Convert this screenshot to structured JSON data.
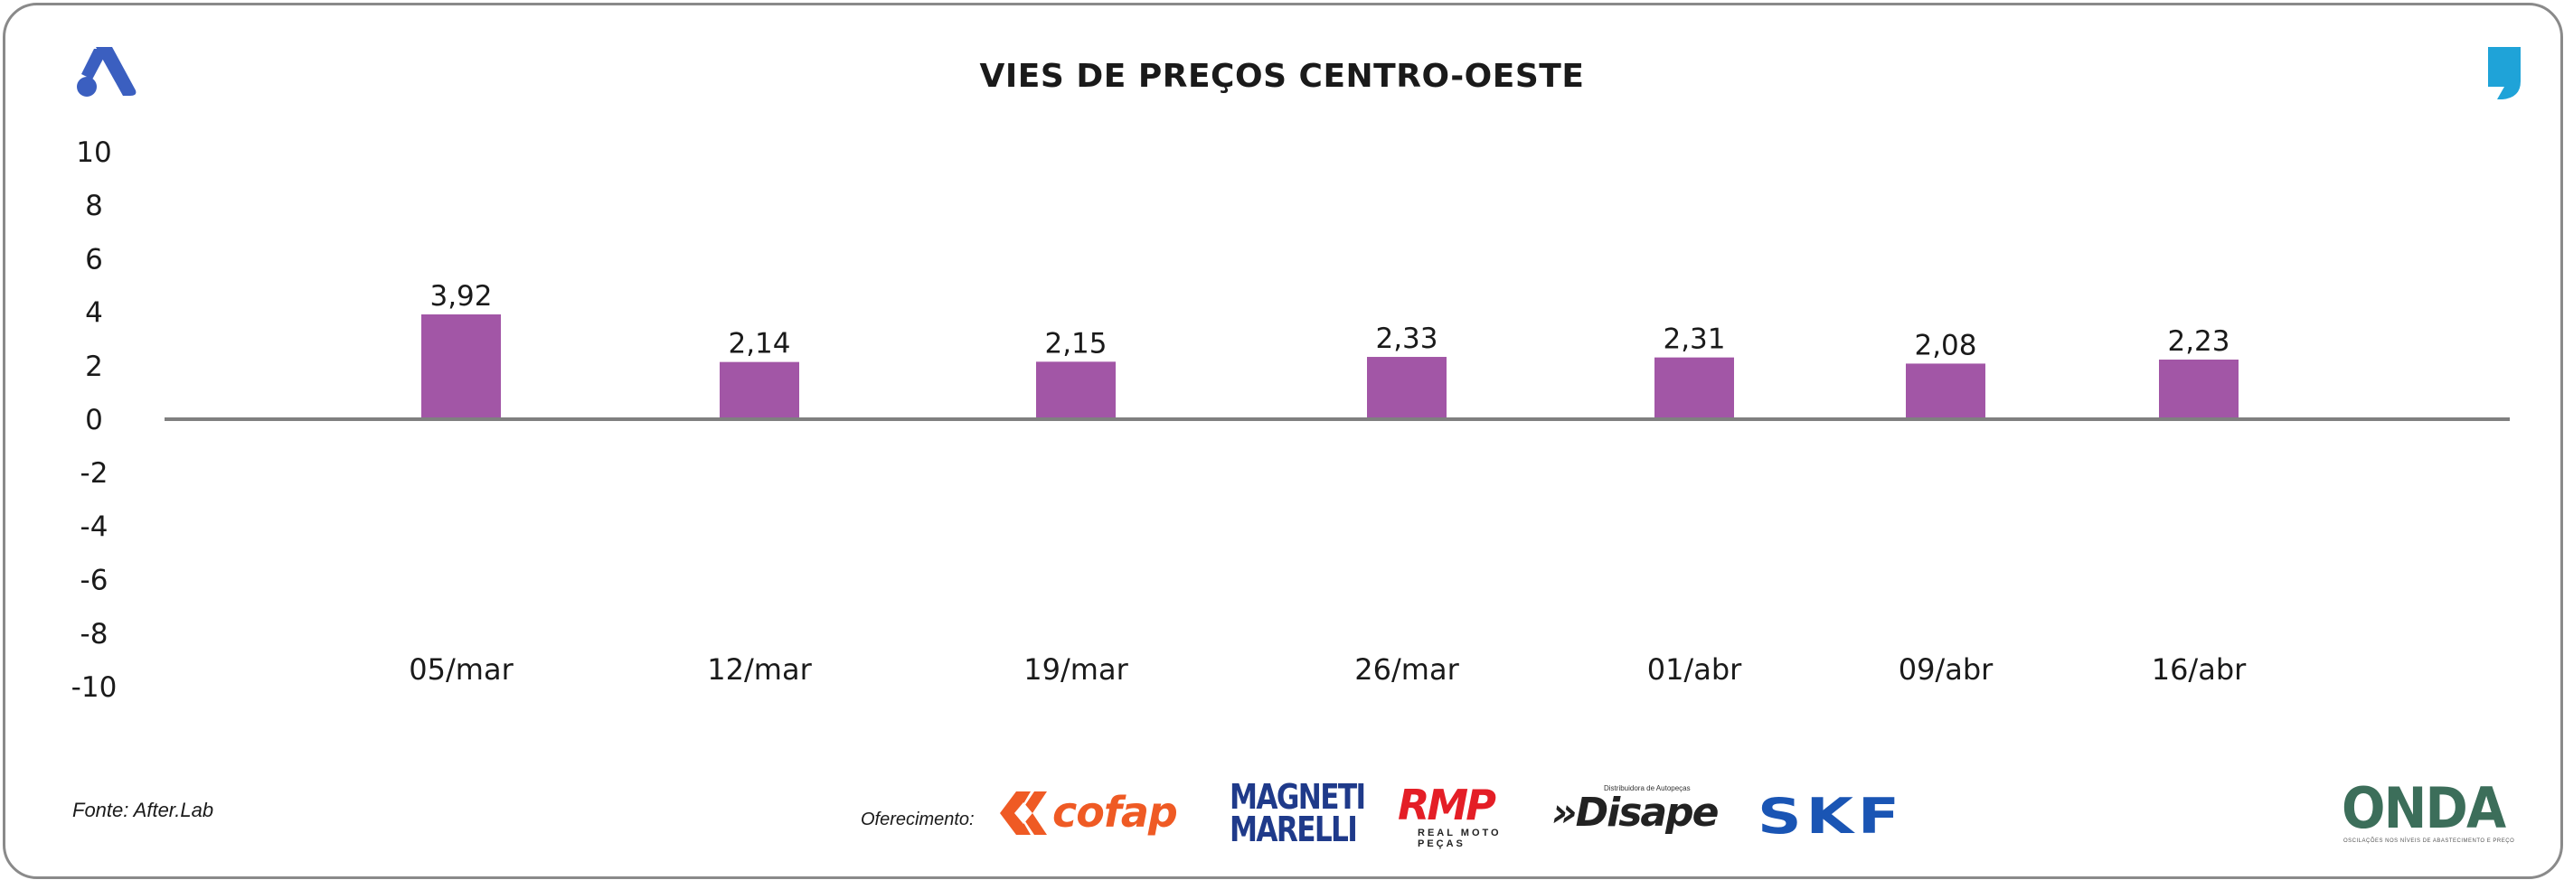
{
  "header": {
    "title": "VIES DE PREÇOS CENTRO-OESTE"
  },
  "footer": {
    "source": "Fonte: After.Lab",
    "offer_label": "Oferecimento:",
    "sponsors": {
      "cofap": "cofap",
      "magneti_line1": "MAGNETI",
      "magneti_line2": "MARELLI",
      "rmp": "RMP",
      "rmp_sub": "REAL MOTO PEÇAS",
      "disape": "»Disape",
      "disape_sub": "Distribuidora de Autopeças",
      "skf": "SKF",
      "onda": "ONDA",
      "onda_sub": "OSCILAÇÕES NOS NÍVEIS DE ABASTECIMENTO E PREÇO"
    }
  },
  "colors": {
    "bar": "#a256a6",
    "axis": "#808080",
    "text": "#1a1a1a",
    "logo_left": "#3b5fc0",
    "logo_right": "#1fa3d8"
  },
  "chart_data": {
    "type": "bar",
    "title": "VIES DE PREÇOS CENTRO-OESTE",
    "categories": [
      "05/mar",
      "12/mar",
      "19/mar",
      "26/mar",
      "01/abr",
      "09/abr",
      "16/abr"
    ],
    "values": [
      3.92,
      2.14,
      2.15,
      2.33,
      2.31,
      2.08,
      2.23
    ],
    "data_labels": [
      "3,92",
      "2,14",
      "2,15",
      "2,33",
      "2,31",
      "2,08",
      "2,23"
    ],
    "yticks": [
      "10",
      "8",
      "6",
      "4",
      "2",
      "0",
      "-2",
      "-4",
      "-6",
      "-8",
      "-10"
    ],
    "ylim": [
      -10,
      10
    ],
    "xlabel": "",
    "ylabel": "",
    "grid": false,
    "legend": "none"
  }
}
